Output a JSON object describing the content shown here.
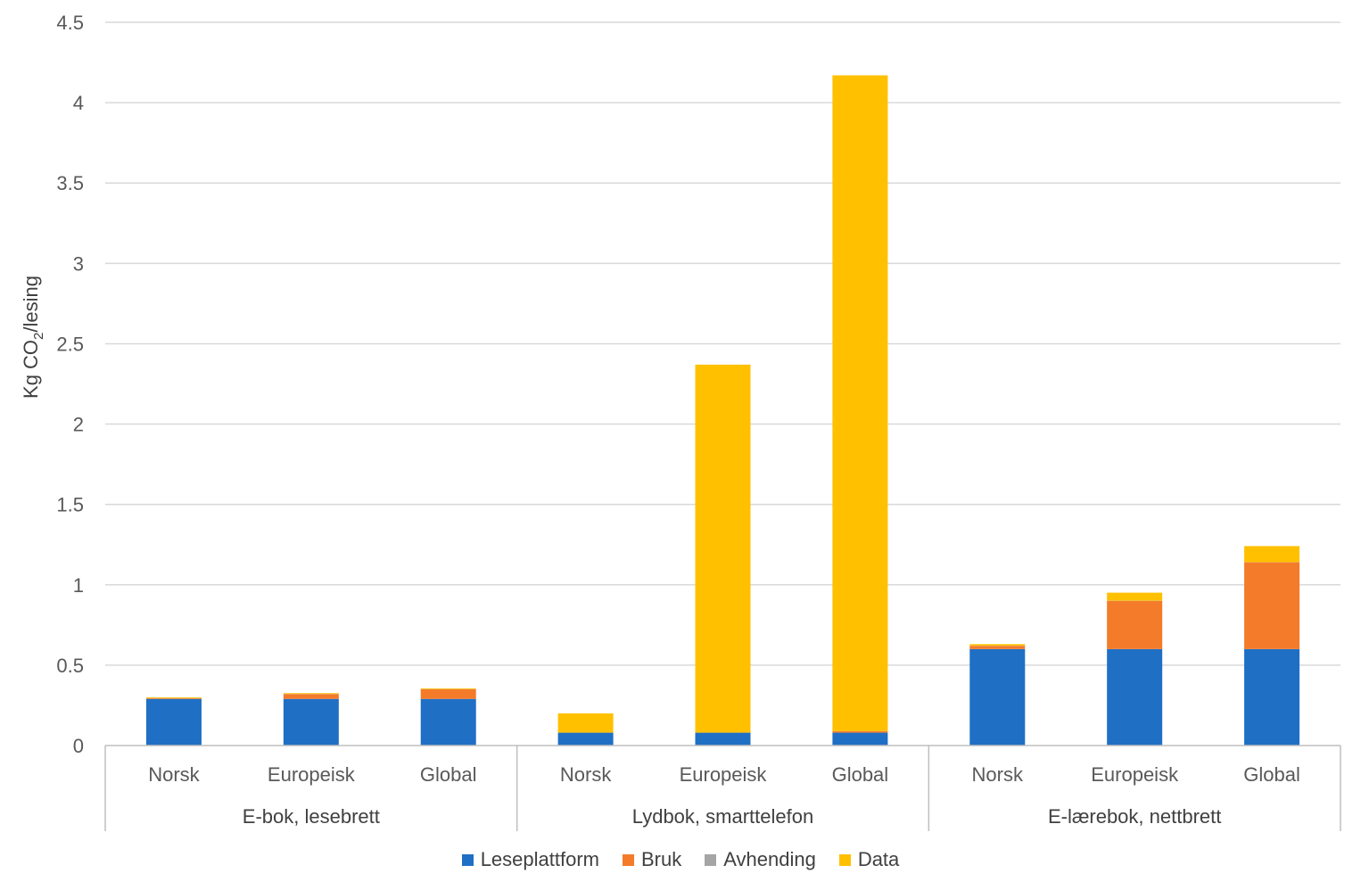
{
  "chart_data": {
    "type": "bar",
    "stacked": true,
    "ylabel_main": "Kg CO",
    "ylabel_sub": "2",
    "ylabel_tail": "/lesing",
    "ylim": [
      0,
      4.5
    ],
    "yticks": [
      "0",
      "0.5",
      "1",
      "1.5",
      "2",
      "2.5",
      "3",
      "3.5",
      "4",
      "4.5"
    ],
    "grid": true,
    "legend_position": "bottom",
    "groups": [
      {
        "label": "E-bok, lesebrett",
        "categories": [
          "Norsk",
          "Europeisk",
          "Global"
        ]
      },
      {
        "label": "Lydbok, smarttelefon",
        "categories": [
          "Norsk",
          "Europeisk",
          "Global"
        ]
      },
      {
        "label": "E-lærebok, nettbrett",
        "categories": [
          "Norsk",
          "Europeisk",
          "Global"
        ]
      }
    ],
    "series": [
      {
        "name": "Leseplattform",
        "color": "#1f6fc5",
        "values": [
          0.29,
          0.29,
          0.29,
          0.08,
          0.08,
          0.08,
          0.6,
          0.6,
          0.6
        ]
      },
      {
        "name": "Bruk",
        "color": "#f47b2a",
        "values": [
          0.004,
          0.03,
          0.06,
          0.0,
          0.0,
          0.01,
          0.02,
          0.3,
          0.54
        ]
      },
      {
        "name": "Avhending",
        "color": "#a5a5a5",
        "values": [
          0.001,
          0.001,
          0.001,
          0.0,
          0.0,
          0.0,
          0.001,
          0.001,
          0.001
        ]
      },
      {
        "name": "Data",
        "color": "#ffc000",
        "values": [
          0.005,
          0.005,
          0.005,
          0.12,
          2.29,
          4.08,
          0.01,
          0.05,
          0.1
        ]
      }
    ]
  }
}
